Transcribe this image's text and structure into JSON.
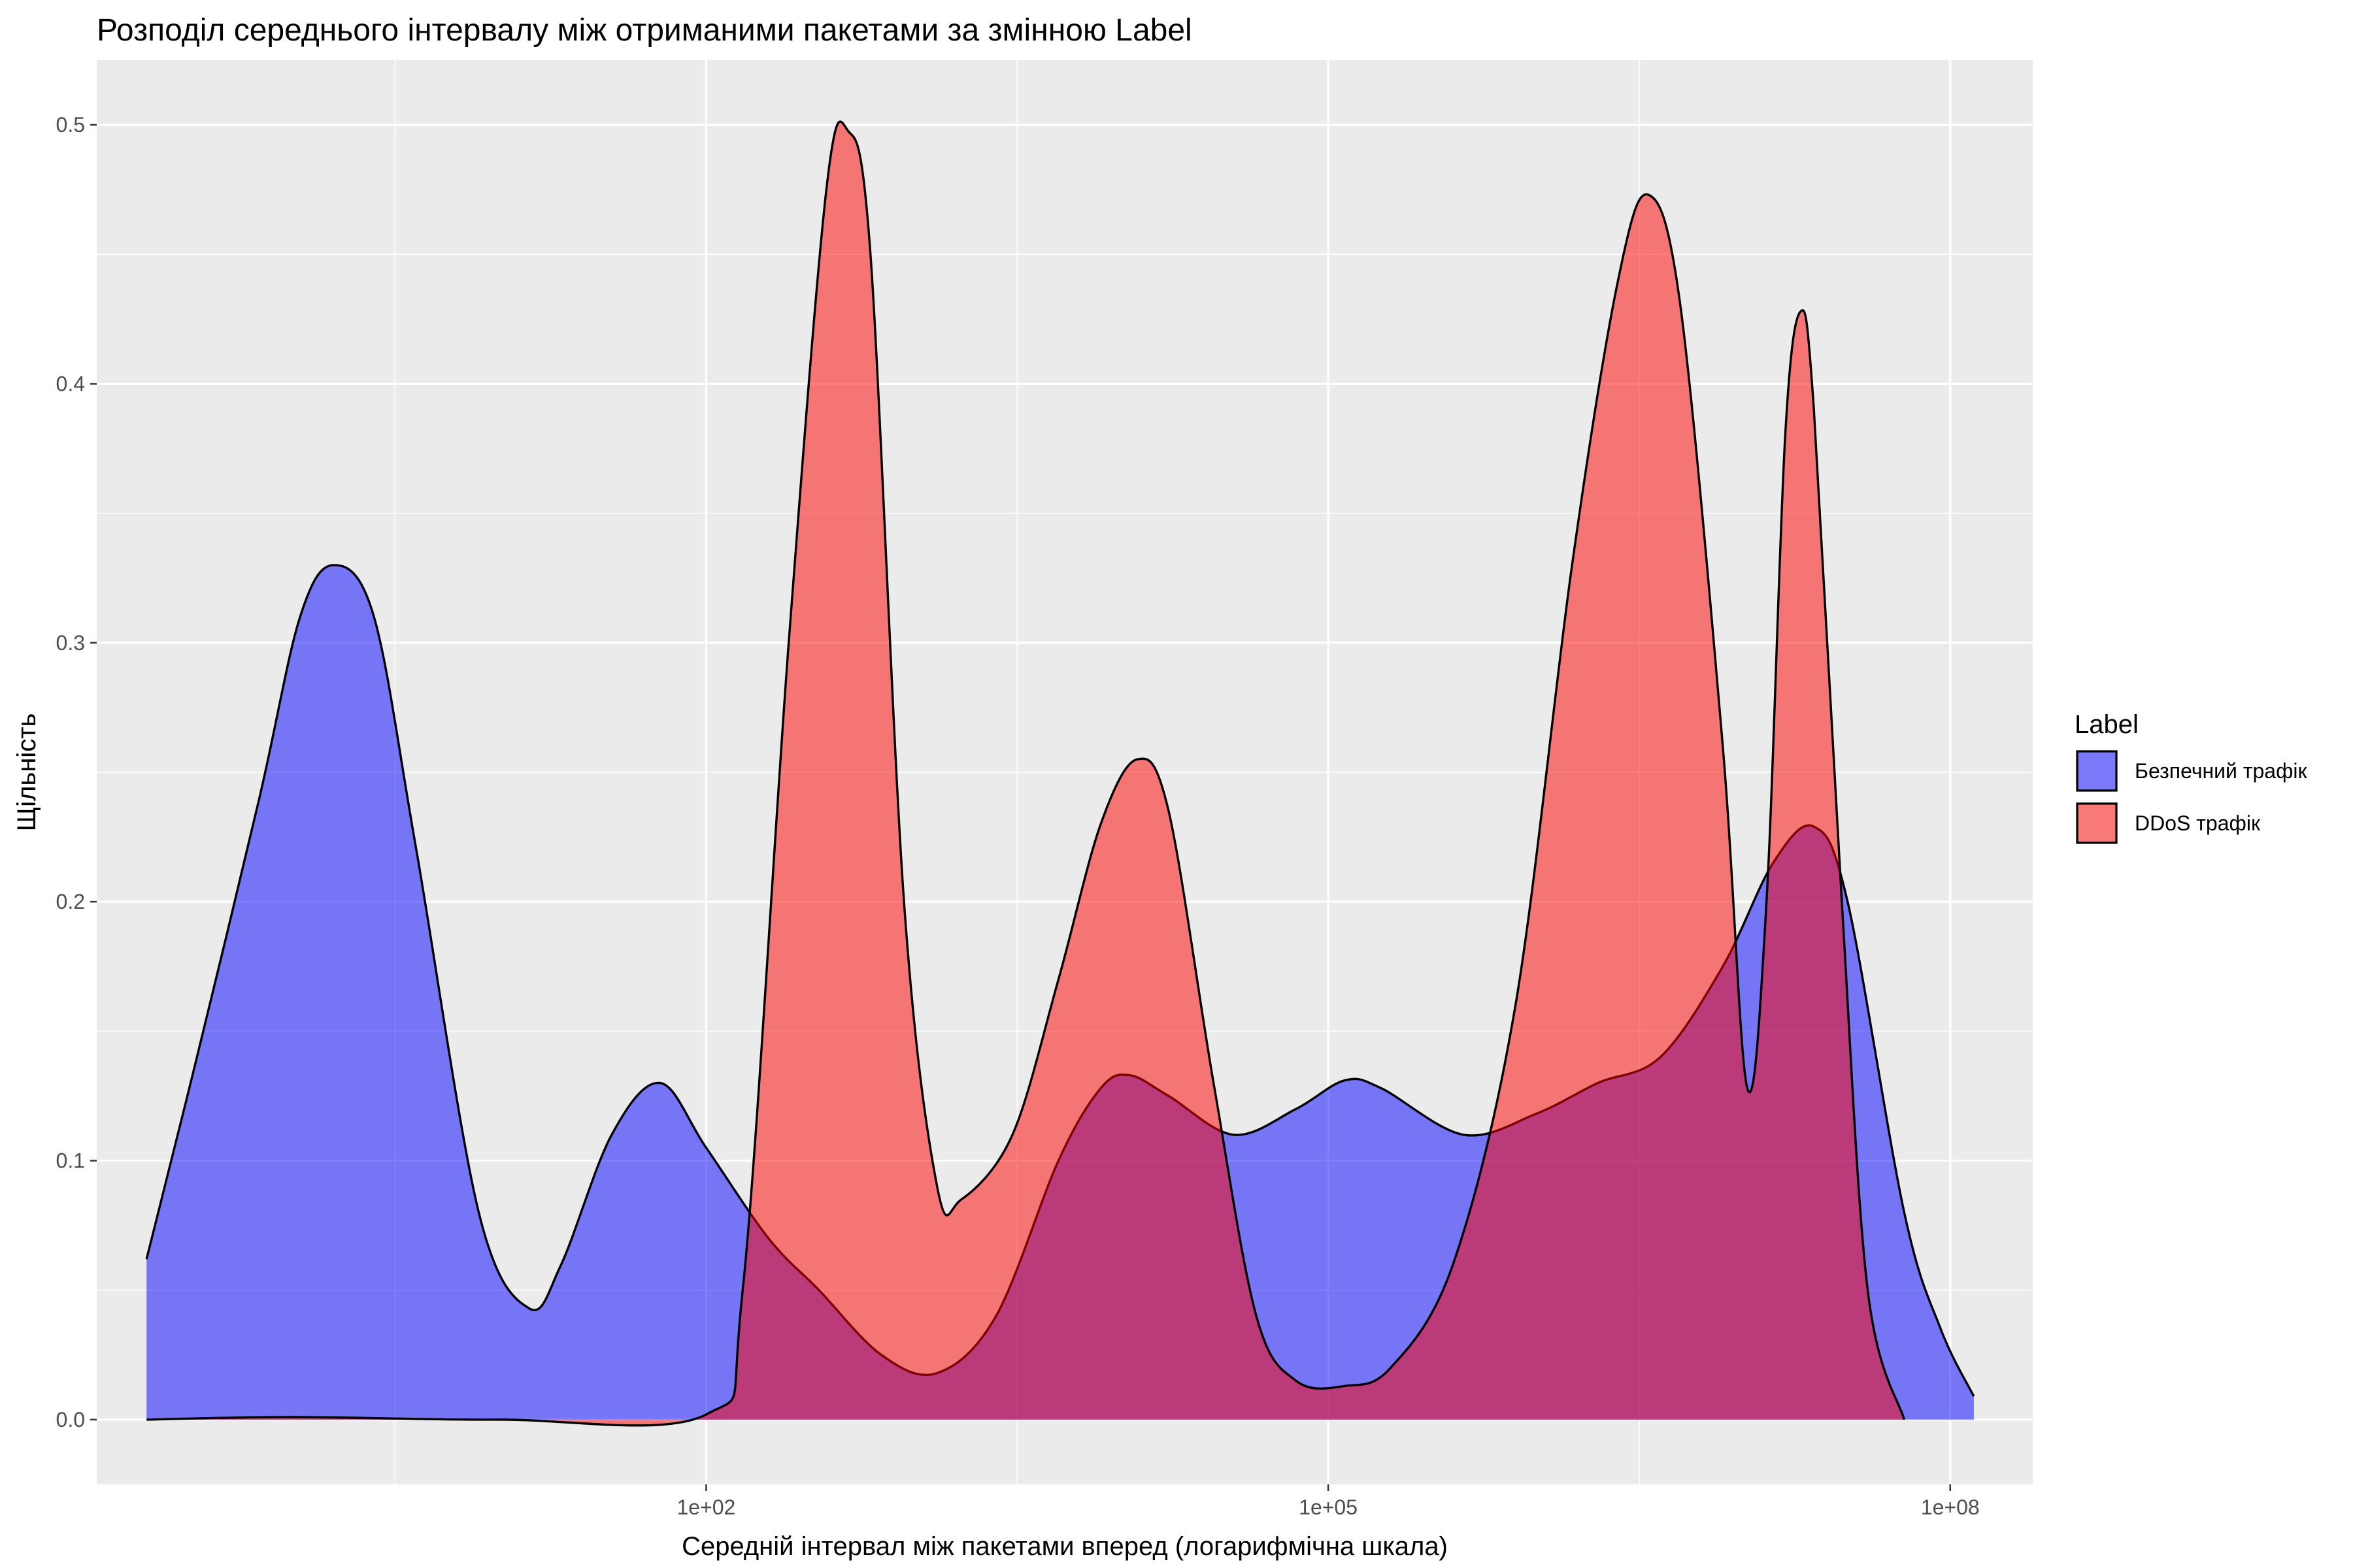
{
  "chart_data": {
    "type": "area",
    "subtype": "density",
    "title": "Розподіл середнього інтервалу між отриманими пакетами за змінною Label",
    "xlabel": "Середній інтервал між пакетами вперед (логарифмічна шкала)",
    "ylabel": "Щільність",
    "x_scale": "log10",
    "xlim": [
      0.115,
      250000000
    ],
    "ylim": [
      -0.025,
      0.525
    ],
    "x_ticks": [
      100,
      100000,
      100000000
    ],
    "x_tick_labels": [
      "1e+02",
      "1e+05",
      "1e+08"
    ],
    "y_ticks": [
      0,
      0.1,
      0.2,
      0.3,
      0.4,
      0.5
    ],
    "y_tick_labels": [
      "0.0",
      "0.1",
      "0.2",
      "0.3",
      "0.4",
      "0.5"
    ],
    "grid": true,
    "legend": {
      "title": "Label",
      "position": "right"
    },
    "series": [
      {
        "name": "Безпечний трафік",
        "color": "#0000ff",
        "opacity": 0.5,
        "points": [
          [
            0.2,
            0.062
          ],
          [
            0.35,
            0.14
          ],
          [
            0.7,
            0.24
          ],
          [
            1.1,
            0.31
          ],
          [
            1.6,
            0.33
          ],
          [
            2.5,
            0.31
          ],
          [
            4,
            0.22
          ],
          [
            8,
            0.08
          ],
          [
            14,
            0.043
          ],
          [
            20,
            0.06
          ],
          [
            35,
            0.11
          ],
          [
            60,
            0.13
          ],
          [
            100,
            0.105
          ],
          [
            200,
            0.07
          ],
          [
            350,
            0.05
          ],
          [
            700,
            0.025
          ],
          [
            1300,
            0.018
          ],
          [
            2500,
            0.04
          ],
          [
            5000,
            0.1
          ],
          [
            8000,
            0.128
          ],
          [
            11000,
            0.133
          ],
          [
            17000,
            0.125
          ],
          [
            35000,
            0.11
          ],
          [
            70000,
            0.12
          ],
          [
            120000,
            0.131
          ],
          [
            180000,
            0.128
          ],
          [
            450000,
            0.11
          ],
          [
            1000000,
            0.118
          ],
          [
            2000000,
            0.13
          ],
          [
            4000000,
            0.14
          ],
          [
            8000000,
            0.175
          ],
          [
            14000000,
            0.215
          ],
          [
            22000000,
            0.229
          ],
          [
            32000000,
            0.2
          ],
          [
            60000000,
            0.08
          ],
          [
            90000000,
            0.035
          ],
          [
            130000000,
            0.009
          ]
        ]
      },
      {
        "name": "DDoS трафік",
        "color": "#ff0000",
        "opacity": 0.5,
        "points": [
          [
            0.2,
            0
          ],
          [
            1,
            0.001
          ],
          [
            10,
            0
          ],
          [
            100,
            0.002
          ],
          [
            150,
            0.05
          ],
          [
            250,
            0.3
          ],
          [
            380,
            0.475
          ],
          [
            480,
            0.498
          ],
          [
            620,
            0.45
          ],
          [
            900,
            0.2
          ],
          [
            1300,
            0.09
          ],
          [
            1700,
            0.085
          ],
          [
            3000,
            0.11
          ],
          [
            5000,
            0.17
          ],
          [
            8000,
            0.23
          ],
          [
            12000,
            0.255
          ],
          [
            17000,
            0.235
          ],
          [
            28000,
            0.13
          ],
          [
            45000,
            0.04
          ],
          [
            70000,
            0.015
          ],
          [
            120000,
            0.013
          ],
          [
            200000,
            0.02
          ],
          [
            400000,
            0.06
          ],
          [
            800000,
            0.16
          ],
          [
            1500000,
            0.33
          ],
          [
            2500000,
            0.44
          ],
          [
            3500000,
            0.473
          ],
          [
            5000000,
            0.43
          ],
          [
            8000000,
            0.26
          ],
          [
            10500000,
            0.128
          ],
          [
            13000000,
            0.2
          ],
          [
            16000000,
            0.38
          ],
          [
            19000000,
            0.428
          ],
          [
            22000000,
            0.39
          ],
          [
            30000000,
            0.2
          ],
          [
            40000000,
            0.05
          ],
          [
            60000000,
            0
          ]
        ]
      }
    ]
  }
}
